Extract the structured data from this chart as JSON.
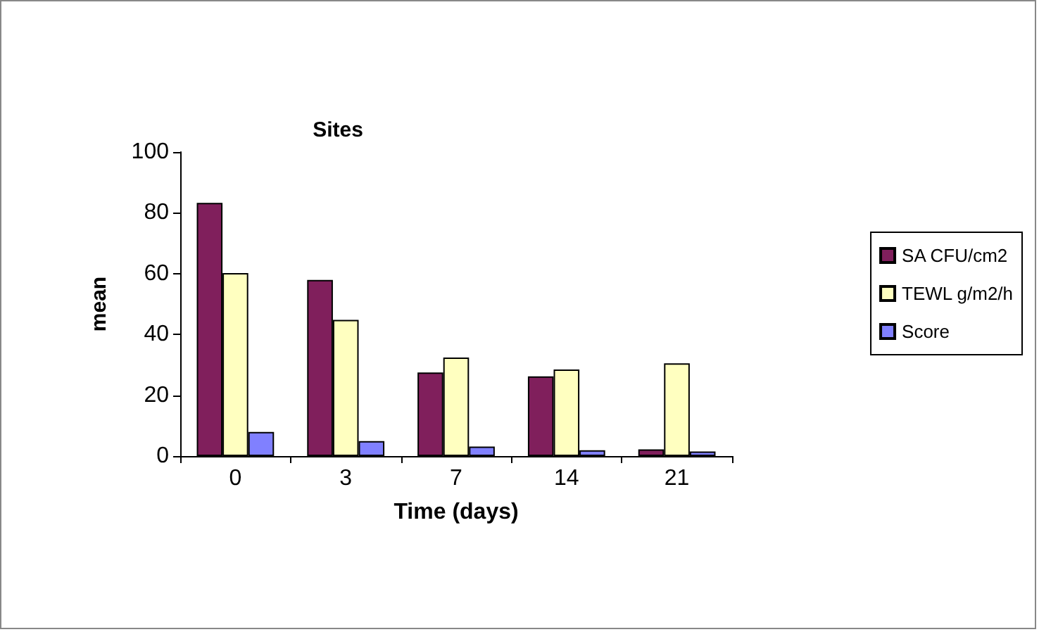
{
  "chart_data": {
    "type": "bar",
    "title": "Sites",
    "xlabel": "Time (days)",
    "ylabel": "mean",
    "categories": [
      "0",
      "3",
      "7",
      "14",
      "21"
    ],
    "series": [
      {
        "name": "SA CFU/cm2",
        "color": "#801f5c",
        "values": [
          83.3,
          57.9,
          27.5,
          26.2,
          2.2
        ]
      },
      {
        "name": "TEWL g/m2/h",
        "color": "#ffffc0",
        "values": [
          60.2,
          44.8,
          32.4,
          28.5,
          30.5
        ]
      },
      {
        "name": "Score",
        "color": "#8080ff",
        "values": [
          7.9,
          4.9,
          3.1,
          1.9,
          1.5
        ]
      }
    ],
    "ylim": [
      0,
      100
    ],
    "yticks": [
      0,
      20,
      40,
      60,
      80,
      100
    ],
    "grid": false,
    "legend": "right"
  }
}
